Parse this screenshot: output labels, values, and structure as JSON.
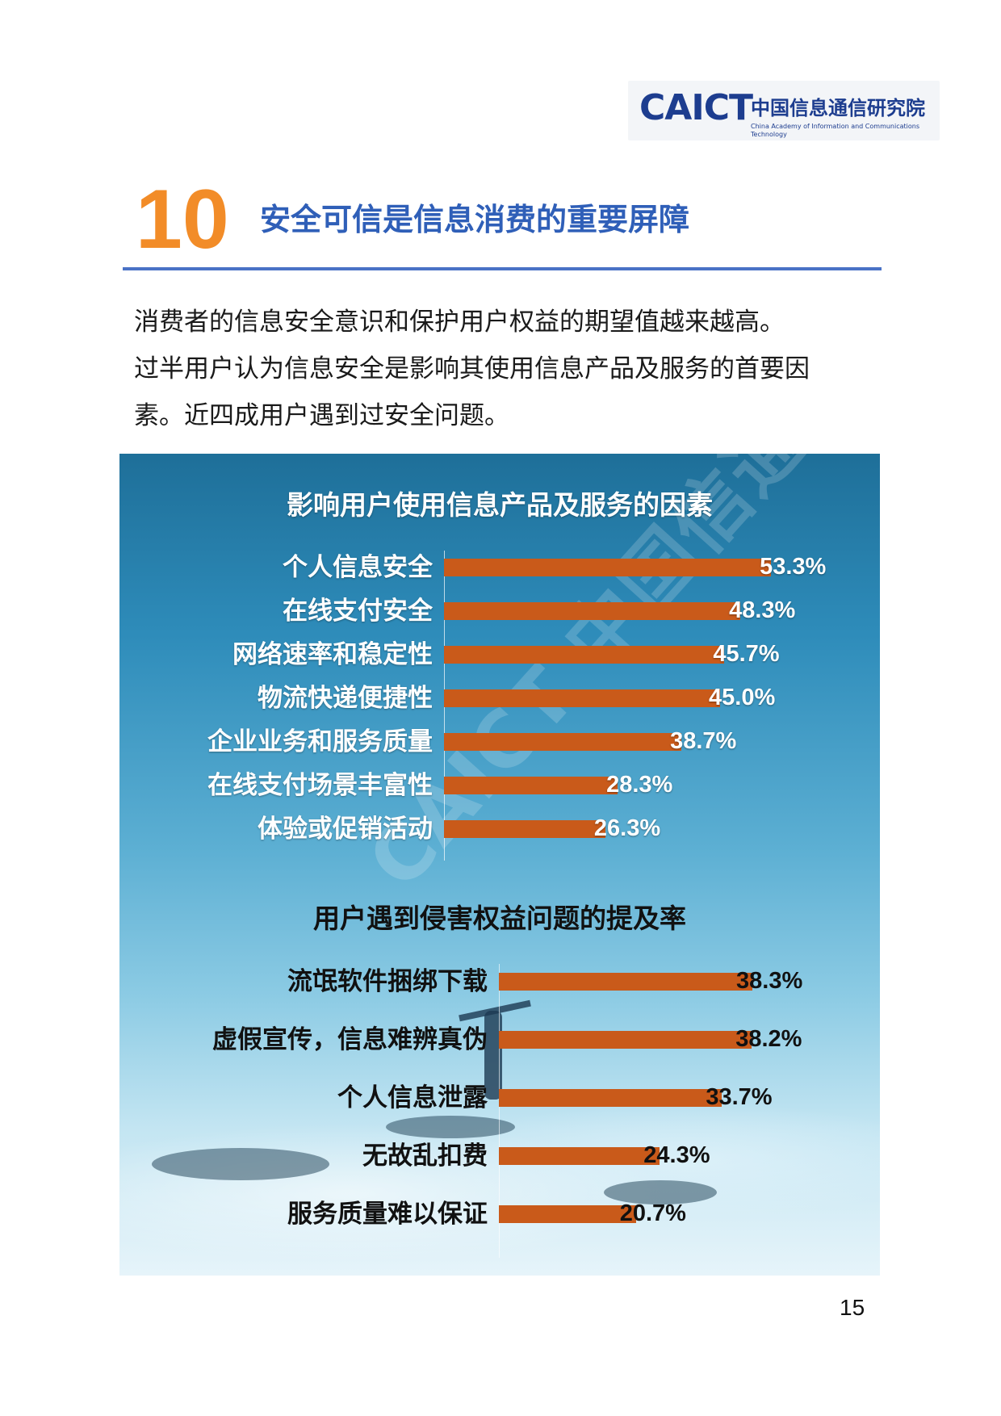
{
  "logo": {
    "mark": "CAICT",
    "name_cn": "中国信息通信研究院",
    "name_en": "China Academy of Information and Communications Technology"
  },
  "section": {
    "number": "10",
    "title": "安全可信是信息消费的重要屏障"
  },
  "body": {
    "lines": [
      "消费者的信息安全意识和保护用户权益的期望值越来越高。",
      "过半用户认为信息安全是影响其使用信息产品及服务的首要因",
      "素。近四成用户遇到过安全问题。"
    ]
  },
  "watermark": "CAICT 中国信通院",
  "page_number": "15",
  "colors": {
    "accent_orange": "#f28c28",
    "title_blue": "#2f5fb8",
    "bar": "#c95a1a",
    "rule": "#4a72c6"
  },
  "chart_data": [
    {
      "type": "bar",
      "orientation": "horizontal",
      "title": "影响用户使用信息产品及服务的因素",
      "categories": [
        "个人信息安全",
        "在线支付安全",
        "网络速率和稳定性",
        "物流快递便捷性",
        "企业业务和服务质量",
        "在线支付场景丰富性",
        "体验或促销活动"
      ],
      "values": [
        53.3,
        48.3,
        45.7,
        45.0,
        38.7,
        28.3,
        26.3
      ],
      "value_labels": [
        "53.3%",
        "48.3%",
        "45.7%",
        "45.0%",
        "38.7%",
        "28.3%",
        "26.3%"
      ],
      "unit": "%"
    },
    {
      "type": "bar",
      "orientation": "horizontal",
      "title": "用户遇到侵害权益问题的提及率",
      "categories": [
        "流氓软件捆绑下载",
        "虚假宣传，信息难辨真伪",
        "个人信息泄露",
        "无故乱扣费",
        "服务质量难以保证"
      ],
      "values": [
        38.3,
        38.2,
        33.7,
        24.3,
        20.7
      ],
      "value_labels": [
        "38.3%",
        "38.2%",
        "33.7%",
        "24.3%",
        "20.7%"
      ],
      "unit": "%"
    }
  ]
}
